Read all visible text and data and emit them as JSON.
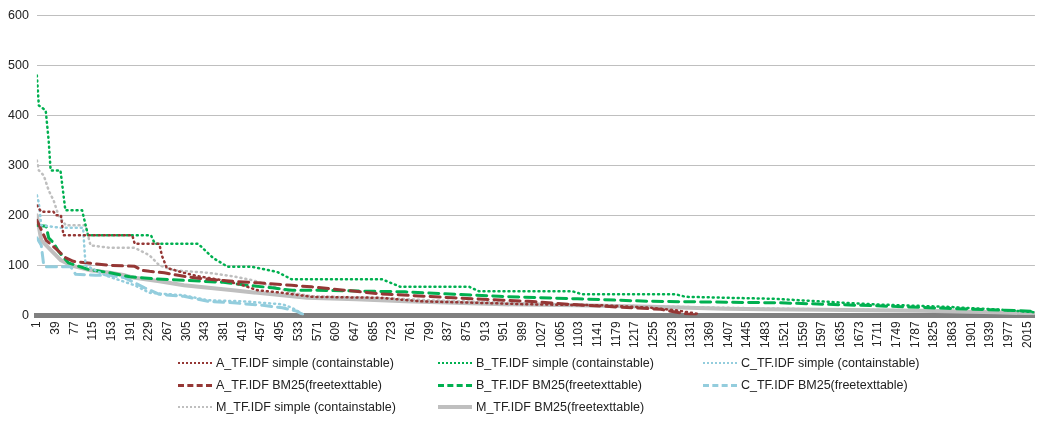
{
  "chart_data": {
    "type": "line",
    "xlim": [
      1,
      2030
    ],
    "xticks": [
      1,
      39,
      77,
      115,
      153,
      191,
      229,
      267,
      305,
      343,
      381,
      419,
      457,
      495,
      533,
      571,
      609,
      647,
      685,
      723,
      761,
      799,
      837,
      875,
      913,
      951,
      989,
      1027,
      1065,
      1103,
      1141,
      1179,
      1217,
      1255,
      1293,
      1331,
      1369,
      1407,
      1445,
      1483,
      1521,
      1559,
      1597,
      1635,
      1673,
      1711,
      1749,
      1787,
      1825,
      1863,
      1901,
      1939,
      1977,
      2015
    ],
    "ylim": [
      0,
      600
    ],
    "yticks": [
      0,
      100,
      200,
      300,
      400,
      500,
      600
    ],
    "grid": "y",
    "legend": "bottom",
    "marker": "none",
    "series": [
      {
        "name": "A_TF.IDF simple (containstable)",
        "color": "#953735",
        "line_style": "dotted",
        "x": [
          1,
          10,
          35,
          40,
          50,
          55,
          195,
          200,
          250,
          255,
          265,
          300,
          330,
          380,
          420,
          450,
          500,
          560,
          700,
          780,
          900,
          1000,
          1150,
          1250,
          1300,
          1345
        ],
        "values": [
          220,
          207,
          207,
          200,
          200,
          160,
          160,
          143,
          143,
          120,
          95,
          85,
          78,
          70,
          60,
          50,
          45,
          37,
          35,
          28,
          25,
          22,
          20,
          15,
          10,
          3
        ]
      },
      {
        "name": "B_TF.IDF simple (containstable)",
        "color": "#00b050",
        "line_style": "dotted",
        "x": [
          1,
          5,
          19,
          25,
          29,
          49,
          59,
          93,
          105,
          233,
          241,
          329,
          359,
          389,
          439,
          489,
          519,
          703,
          740,
          880,
          900,
          1090,
          1110,
          1300,
          1320,
          1500,
          1700,
          1850,
          1950,
          2030
        ],
        "values": [
          480,
          420,
          410,
          350,
          290,
          290,
          210,
          210,
          160,
          160,
          143,
          143,
          115,
          97,
          97,
          87,
          72,
          72,
          57,
          57,
          48,
          48,
          42,
          42,
          37,
          33,
          22,
          17,
          12,
          6
        ]
      },
      {
        "name": "C_TF.IDF simple (containstable)",
        "color": "#93cddd",
        "line_style": "dotted",
        "x": [
          1,
          5,
          10,
          50,
          95,
          100,
          140,
          200,
          230,
          300,
          350,
          420,
          460,
          500,
          520,
          545
        ],
        "values": [
          240,
          225,
          180,
          175,
          175,
          100,
          80,
          60,
          45,
          40,
          30,
          28,
          25,
          22,
          15,
          0
        ]
      },
      {
        "name": "A_TF.IDF BM25(freetexttable)",
        "color": "#953735",
        "line_style": "dashed",
        "x": [
          1,
          20,
          40,
          60,
          75,
          100,
          150,
          200,
          215,
          230,
          260,
          300,
          350,
          400,
          450,
          519,
          559,
          699,
          849,
          1000,
          1100,
          1269,
          1309,
          1340
        ],
        "values": [
          190,
          150,
          133,
          115,
          108,
          105,
          100,
          98,
          90,
          88,
          85,
          78,
          72,
          68,
          65,
          60,
          57,
          43,
          35,
          28,
          21,
          12,
          5,
          0
        ]
      },
      {
        "name": "B_TF.IDF BM25(freetexttable)",
        "color": "#00b050",
        "line_style": "dashed",
        "x": [
          1,
          20,
          25,
          35,
          45,
          65,
          105,
          150,
          190,
          240,
          300,
          380,
          430,
          480,
          520,
          569,
          749,
          829,
          940,
          1100,
          1249,
          1509,
          1709,
          1849,
          2030
        ],
        "values": [
          180,
          178,
          155,
          145,
          128,
          105,
          92,
          85,
          77,
          73,
          70,
          66,
          60,
          55,
          50,
          50,
          47,
          43,
          38,
          33,
          28,
          25,
          19,
          14,
          8
        ]
      },
      {
        "name": "C_TF.IDF BM25(freetexttable)",
        "color": "#93cddd",
        "line_style": "dashed",
        "x": [
          1,
          10,
          15,
          20,
          70,
          80,
          120,
          150,
          180,
          200,
          220,
          250,
          300,
          350,
          400,
          460,
          500,
          530,
          545
        ],
        "values": [
          155,
          140,
          100,
          97,
          97,
          82,
          80,
          80,
          75,
          65,
          55,
          42,
          38,
          28,
          25,
          20,
          15,
          8,
          0
        ]
      },
      {
        "name": "M_TF.IDF simple (containstable)",
        "color": "#bfbfbf",
        "line_style": "dotted",
        "x": [
          1,
          5,
          15,
          25,
          35,
          40,
          45,
          60,
          100,
          110,
          150,
          200,
          230,
          250,
          280,
          350,
          400,
          440,
          490,
          520,
          560,
          700,
          800,
          900,
          1000,
          1100,
          1250,
          1400,
          1600,
          1800,
          2000,
          2030
        ],
        "values": [
          310,
          290,
          280,
          250,
          230,
          215,
          200,
          180,
          180,
          140,
          135,
          135,
          120,
          100,
          90,
          85,
          78,
          70,
          55,
          45,
          38,
          35,
          30,
          27,
          24,
          20,
          18,
          15,
          12,
          10,
          6,
          4
        ]
      },
      {
        "name": "M_TF.IDF BM25(freetexttable)",
        "color": "#bfbfbf",
        "line_style": "solid",
        "x": [
          1,
          10,
          40,
          50,
          70,
          110,
          150,
          180,
          200,
          250,
          300,
          350,
          400,
          450,
          500,
          550,
          650,
          750,
          850,
          950,
          1100,
          1250,
          1400,
          1600,
          1800,
          1950,
          2030
        ],
        "values": [
          200,
          150,
          120,
          110,
          100,
          90,
          85,
          80,
          75,
          68,
          60,
          55,
          50,
          45,
          40,
          35,
          32,
          28,
          25,
          22,
          20,
          17,
          13,
          11,
          9,
          6,
          4
        ]
      }
    ]
  }
}
